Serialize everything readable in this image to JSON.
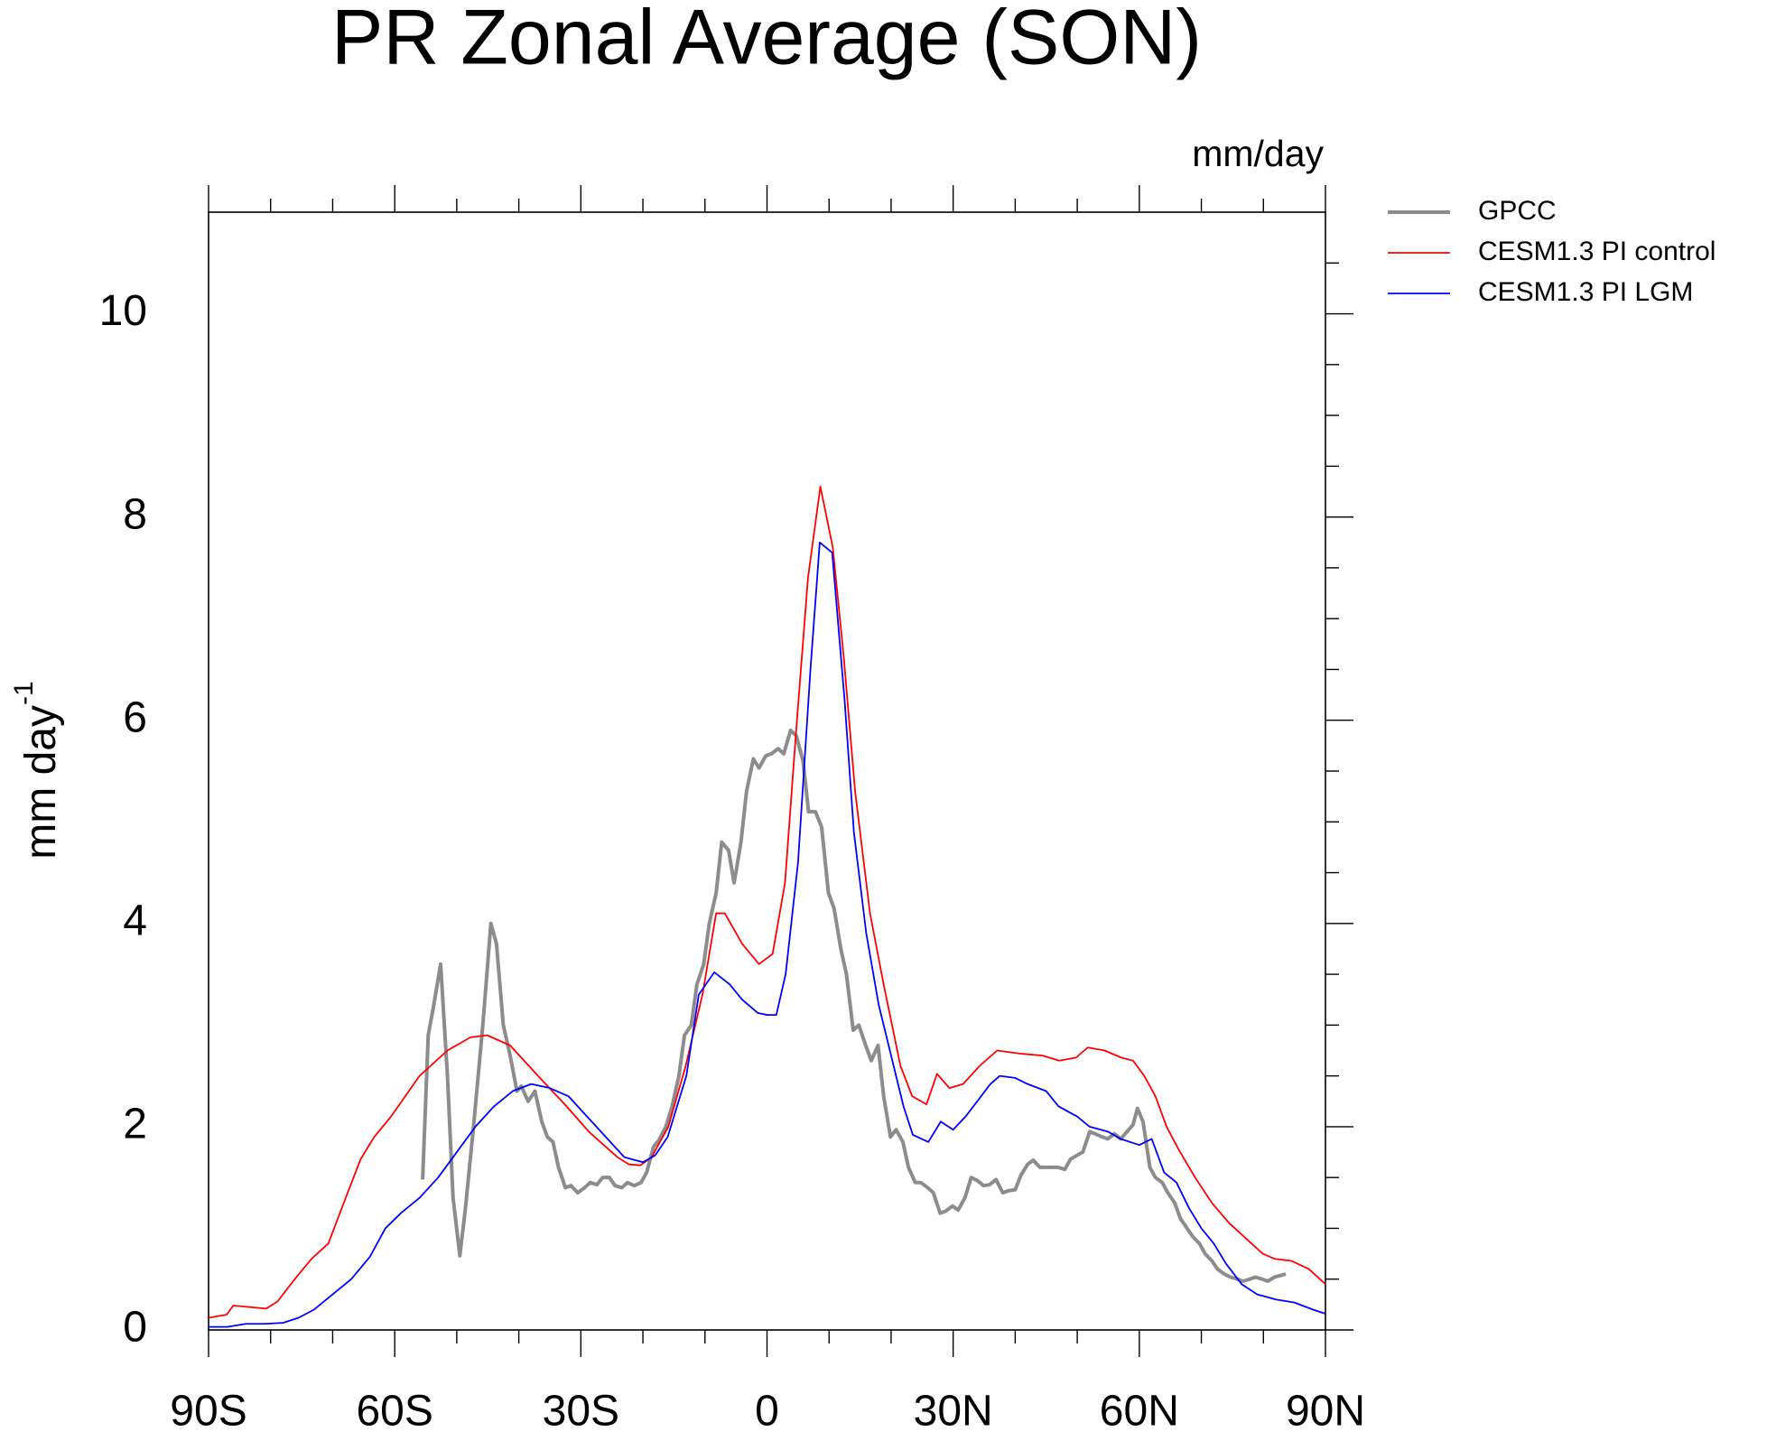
{
  "chart_data": {
    "type": "line",
    "title": "PR Zonal Average (SON)",
    "units_label": "mm/day",
    "ylabel": "mm day",
    "ylabel_superscript": "-1",
    "xlim": [
      -90,
      90
    ],
    "ylim": [
      0,
      11
    ],
    "xticks": [
      {
        "value": -90,
        "label": "90S"
      },
      {
        "value": -60,
        "label": "60S"
      },
      {
        "value": -30,
        "label": "30S"
      },
      0,
      {
        "value": 30,
        "label": "30N"
      },
      {
        "value": 60,
        "label": "60N"
      },
      {
        "value": 90,
        "label": "90N"
      }
    ],
    "xminorticks": [
      -80,
      -70,
      -50,
      -40,
      -20,
      -10,
      10,
      20,
      40,
      50,
      70,
      80
    ],
    "yticks": [
      0,
      2,
      4,
      6,
      8,
      10
    ],
    "yminorticks": [
      0.5,
      1,
      1.5,
      2.5,
      3,
      3.5,
      4.5,
      5,
      5.5,
      6.5,
      7,
      7.5,
      8.5,
      9,
      9.5,
      10.5
    ],
    "series": [
      {
        "name": "GPCC",
        "color": "#8c8c8c",
        "width": 4,
        "x": [
          -55.5,
          -54.6,
          -53.7,
          -52.6,
          -51.5,
          -50.6,
          -49.5,
          -48.6,
          -47.3,
          -45.8,
          -44.5,
          -43.6,
          -42.5,
          -41.4,
          -40.3,
          -39.6,
          -38.5,
          -37.4,
          -36.3,
          -35.4,
          -34.5,
          -33.6,
          -32.5,
          -31.6,
          -30.5,
          -29.4,
          -28.5,
          -27.4,
          -26.5,
          -25.4,
          -24.5,
          -23.4,
          -22.5,
          -21.4,
          -20.3,
          -19.4,
          -18.3,
          -17.4,
          -16.3,
          -15.3,
          -14.2,
          -13.3,
          -12.2,
          -11.3,
          -10.2,
          -9.3,
          -8.2,
          -7.3,
          -6.2,
          -5.3,
          -4.2,
          -3.3,
          -2.2,
          -1.3,
          -0.2,
          0.7,
          1.8,
          2.7,
          3.8,
          4.7,
          5.8,
          6.7,
          7.8,
          8.8,
          9.9,
          10.8,
          11.9,
          12.8,
          13.9,
          14.8,
          15.9,
          16.8,
          17.9,
          18.8,
          19.9,
          20.8,
          21.9,
          22.8,
          23.9,
          24.8,
          25.9,
          26.8,
          27.9,
          28.8,
          29.9,
          30.8,
          31.9,
          32.9,
          33.9,
          34.9,
          35.9,
          36.9,
          38,
          38.9,
          40,
          40.9,
          42,
          42.9,
          44,
          44.9,
          46,
          46.9,
          48,
          48.9,
          50,
          50.9,
          52,
          52.9,
          54,
          54.9,
          56,
          57,
          58,
          59,
          59.7,
          60.6,
          61.7,
          62.6,
          63.7,
          64.6,
          65.7,
          66.6,
          67.7,
          68.6,
          69.7,
          70.6,
          71.7,
          72.6,
          73.7,
          74.7,
          75.8,
          76.7,
          77.8,
          78.7,
          79.8,
          80.7,
          81.8,
          83.6
        ],
        "values": [
          1.48,
          2.9,
          3.2,
          3.6,
          2.5,
          1.3,
          0.73,
          1.2,
          2.0,
          3.0,
          4.0,
          3.8,
          3.0,
          2.7,
          2.35,
          2.4,
          2.25,
          2.35,
          2.05,
          1.9,
          1.85,
          1.6,
          1.4,
          1.42,
          1.35,
          1.4,
          1.45,
          1.43,
          1.5,
          1.5,
          1.42,
          1.4,
          1.45,
          1.42,
          1.45,
          1.55,
          1.8,
          1.87,
          2.0,
          2.2,
          2.5,
          2.9,
          3.0,
          3.4,
          3.6,
          4.0,
          4.3,
          4.8,
          4.72,
          4.4,
          4.8,
          5.3,
          5.62,
          5.53,
          5.65,
          5.67,
          5.72,
          5.67,
          5.9,
          5.85,
          5.6,
          5.1,
          5.1,
          4.95,
          4.3,
          4.15,
          3.75,
          3.5,
          2.95,
          3.0,
          2.8,
          2.65,
          2.8,
          2.3,
          1.9,
          1.97,
          1.85,
          1.6,
          1.45,
          1.45,
          1.4,
          1.35,
          1.15,
          1.17,
          1.22,
          1.18,
          1.3,
          1.5,
          1.47,
          1.42,
          1.43,
          1.48,
          1.35,
          1.37,
          1.38,
          1.52,
          1.63,
          1.67,
          1.6,
          1.6,
          1.6,
          1.6,
          1.58,
          1.68,
          1.72,
          1.75,
          1.95,
          1.93,
          1.9,
          1.88,
          1.93,
          1.88,
          1.95,
          2.02,
          2.18,
          2.05,
          1.6,
          1.5,
          1.45,
          1.35,
          1.25,
          1.1,
          1.0,
          0.92,
          0.85,
          0.75,
          0.68,
          0.6,
          0.55,
          0.52,
          0.5,
          0.48,
          0.5,
          0.52,
          0.5,
          0.48,
          0.52,
          0.55
        ]
      },
      {
        "name": "CESM1.3 PI control",
        "color": "#ff0000",
        "width": 1.8,
        "x": [
          -90,
          -87.1,
          -86,
          -80.7,
          -78.9,
          -76.1,
          -73.4,
          -70.7,
          -67.9,
          -65.5,
          -63.3,
          -60.6,
          -56,
          -51.5,
          -47.8,
          -45.1,
          -41.4,
          -36.9,
          -32.3,
          -28.7,
          -24.1,
          -22.3,
          -20.4,
          -18.6,
          -15.9,
          -13.1,
          -10.4,
          -8.2,
          -6.8,
          -4,
          -1.3,
          0.9,
          2.9,
          4.7,
          6.6,
          8.6,
          10.6,
          12.4,
          14.2,
          16.6,
          18.8,
          21.5,
          23.4,
          25.7,
          27.4,
          29.4,
          31.6,
          34.3,
          37.1,
          40.7,
          44.4,
          47.1,
          49.8,
          51.7,
          54.4,
          57.1,
          59,
          60.8,
          62.6,
          64.4,
          66.3,
          69,
          71.7,
          74.5,
          77.2,
          79.9,
          81.8,
          84.5,
          87.3,
          90
        ],
        "values": [
          0.12,
          0.15,
          0.24,
          0.21,
          0.28,
          0.5,
          0.7,
          0.85,
          1.3,
          1.68,
          1.9,
          2.1,
          2.5,
          2.75,
          2.88,
          2.9,
          2.8,
          2.5,
          2.2,
          1.95,
          1.7,
          1.63,
          1.62,
          1.7,
          2.0,
          2.6,
          3.3,
          4.1,
          4.1,
          3.8,
          3.6,
          3.7,
          4.4,
          5.9,
          7.4,
          8.3,
          7.7,
          6.6,
          5.3,
          4.1,
          3.4,
          2.6,
          2.3,
          2.22,
          2.52,
          2.38,
          2.42,
          2.6,
          2.75,
          2.72,
          2.7,
          2.65,
          2.68,
          2.78,
          2.75,
          2.68,
          2.65,
          2.5,
          2.3,
          2.0,
          1.78,
          1.5,
          1.25,
          1.05,
          0.9,
          0.75,
          0.7,
          0.68,
          0.6,
          0.45
        ]
      },
      {
        "name": "CESM1.3 PI LGM",
        "color": "#0000ff",
        "width": 1.8,
        "x": [
          -90,
          -87,
          -84,
          -81,
          -78,
          -75.5,
          -73,
          -70,
          -67,
          -64,
          -61.5,
          -59,
          -56,
          -53,
          -50,
          -47,
          -44,
          -41,
          -38,
          -35,
          -32,
          -29,
          -26,
          -23,
          -20,
          -18,
          -16,
          -13,
          -11,
          -8.5,
          -6,
          -4,
          -1.5,
          0,
          1.5,
          3,
          5,
          7,
          8.5,
          10.5,
          12.5,
          14,
          16,
          18,
          20,
          22,
          23.5,
          26,
          28,
          30,
          32,
          34.5,
          36,
          37.5,
          40,
          42,
          45,
          47,
          50,
          52,
          55,
          57,
          60,
          62,
          64,
          66,
          68,
          70,
          72,
          74,
          76.5,
          79,
          82,
          85,
          88,
          90
        ],
        "values": [
          0.03,
          0.03,
          0.06,
          0.06,
          0.07,
          0.12,
          0.2,
          0.35,
          0.5,
          0.72,
          1.0,
          1.15,
          1.3,
          1.5,
          1.75,
          2.0,
          2.2,
          2.35,
          2.42,
          2.38,
          2.3,
          2.1,
          1.9,
          1.7,
          1.65,
          1.72,
          1.9,
          2.5,
          3.3,
          3.52,
          3.4,
          3.25,
          3.12,
          3.1,
          3.1,
          3.5,
          4.6,
          6.5,
          7.75,
          7.65,
          6.2,
          4.9,
          3.9,
          3.2,
          2.7,
          2.2,
          1.92,
          1.85,
          2.05,
          1.97,
          2.1,
          2.3,
          2.42,
          2.5,
          2.48,
          2.42,
          2.35,
          2.2,
          2.1,
          2.0,
          1.95,
          1.88,
          1.82,
          1.88,
          1.55,
          1.45,
          1.2,
          1.0,
          0.85,
          0.65,
          0.45,
          0.35,
          0.3,
          0.27,
          0.2,
          0.16
        ]
      }
    ],
    "legend": "outside-top-right"
  }
}
